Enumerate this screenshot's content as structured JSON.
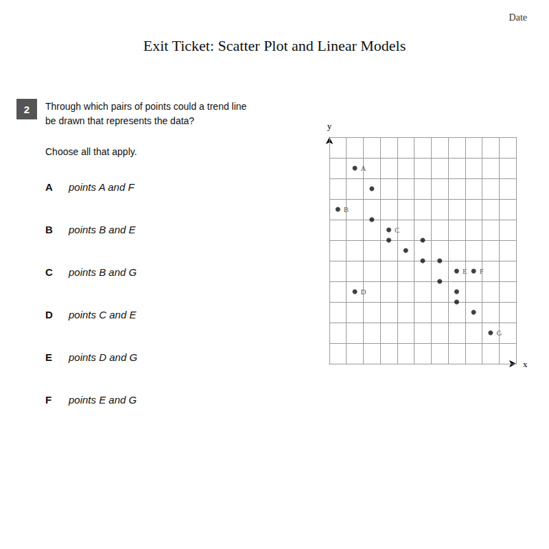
{
  "chart_data": {
    "type": "scatter",
    "title": "Exit Ticket: Scatter Plot and Linear Models",
    "date_label": "Date",
    "question_number": "2",
    "question_text": "Through which pairs of points could a trend line\nbe drawn that represents the data?",
    "sub_text": "Choose all that apply.",
    "choices": [
      {
        "letter": "A",
        "text": "points A and F"
      },
      {
        "letter": "B",
        "text": "points B and E"
      },
      {
        "letter": "C",
        "text": "points B and G"
      },
      {
        "letter": "D",
        "text": "points C and E"
      },
      {
        "letter": "E",
        "text": "points D and G"
      },
      {
        "letter": "F",
        "text": "points E and G"
      }
    ],
    "x": [
      1,
      2,
      0,
      2,
      3,
      3,
      5,
      4,
      5,
      6,
      7,
      8,
      6,
      7,
      1,
      7,
      8,
      9
    ],
    "values": [
      9,
      8,
      7,
      6.5,
      6,
      5.5,
      5.5,
      5,
      4.5,
      4.5,
      4,
      4,
      3.5,
      3,
      3,
      2.5,
      2,
      1
    ],
    "point_names": [
      "A",
      null,
      "B",
      null,
      "C",
      null,
      null,
      null,
      null,
      null,
      "E",
      "F",
      null,
      null,
      "D",
      null,
      null,
      "G"
    ],
    "color": "#111111",
    "x_label": "x",
    "y_label": "y",
    "xlim": [
      -0.5,
      10.5
    ],
    "ylim": [
      -0.5,
      10.5
    ],
    "xticks": [
      -0.5,
      0.5,
      1.5,
      2.5,
      3.5,
      4.5,
      5.5,
      6.5,
      7.5,
      8.5,
      9.5,
      10.5
    ],
    "yticks": [
      -0.5,
      0.5,
      1.5,
      2.5,
      3.5,
      4.5,
      5.5,
      6.5,
      7.5,
      8.5,
      9.5,
      10.5
    ],
    "tick_labels": false,
    "grid": true
  }
}
